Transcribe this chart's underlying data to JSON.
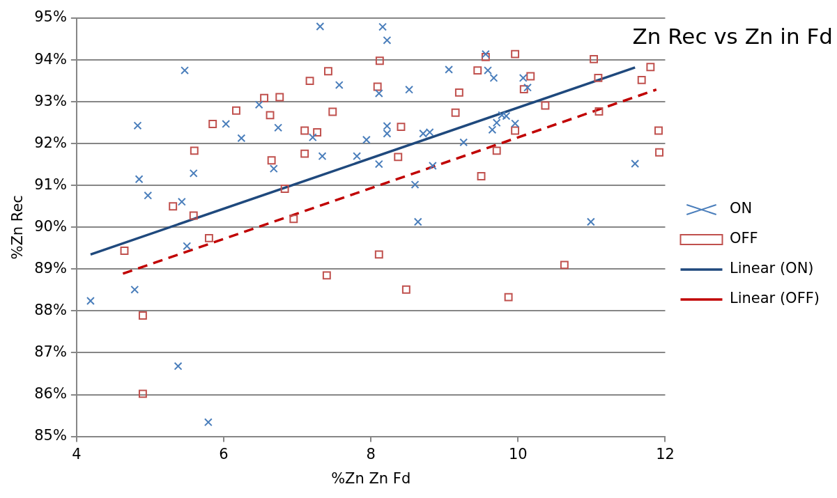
{
  "chart_data": {
    "type": "scatter",
    "title": "Zn Rec vs Zn in Fd",
    "xlabel": "%Zn Zn Fd",
    "ylabel": "%Zn Rec",
    "xlim": [
      4,
      12
    ],
    "xticks": [
      4,
      6,
      8,
      10,
      12
    ],
    "ylim": [
      85,
      95
    ],
    "yticks": [
      {
        "value": 85,
        "label": "85%"
      },
      {
        "value": 86,
        "label": "86%"
      },
      {
        "value": 87,
        "label": "87%"
      },
      {
        "value": 88,
        "label": "88%"
      },
      {
        "value": 89,
        "label": "89%"
      },
      {
        "value": 90,
        "label": "90%"
      },
      {
        "value": 91,
        "label": "91%"
      },
      {
        "value": 92,
        "label": "92%"
      },
      {
        "value": 93,
        "label": "93%"
      },
      {
        "value": 94,
        "label": "94%"
      },
      {
        "value": 95,
        "label": "95%"
      }
    ],
    "grid": "y",
    "legend": "right",
    "series": [
      {
        "name": "ON",
        "color": "#4a7ebb",
        "marker": "cross",
        "x": [
          4.19,
          4.83,
          4.85,
          4.97,
          4.79,
          5.47,
          5.43,
          5.5,
          5.59,
          5.38,
          5.79,
          6.03,
          6.24,
          6.48,
          6.74,
          6.68,
          7.21,
          7.31,
          7.34,
          7.57,
          7.81,
          7.94,
          8.11,
          8.11,
          8.16,
          8.22,
          8.22,
          8.22,
          8.52,
          8.6,
          8.64,
          8.71,
          8.8,
          8.84,
          9.26,
          9.06,
          9.56,
          9.59,
          9.67,
          9.65,
          9.71,
          9.78,
          9.84,
          9.96,
          10.07,
          10.13,
          10.99,
          11.59
        ],
        "values": [
          88.24,
          92.43,
          91.15,
          90.76,
          88.51,
          93.75,
          90.61,
          89.55,
          91.29,
          86.68,
          85.34,
          92.47,
          92.13,
          92.93,
          92.38,
          91.4,
          92.15,
          94.8,
          91.7,
          93.4,
          91.7,
          92.09,
          91.51,
          93.2,
          94.79,
          94.47,
          92.42,
          92.24,
          93.29,
          91.02,
          90.13,
          92.24,
          92.27,
          91.47,
          92.03,
          93.77,
          94.14,
          93.75,
          93.57,
          92.33,
          92.5,
          92.68,
          92.66,
          92.48,
          93.57,
          93.34,
          90.13,
          91.52
        ]
      },
      {
        "name": "OFF",
        "color": "#c0504d",
        "marker": "square",
        "x": [
          7.42,
          7.17,
          6.76,
          6.55,
          6.17,
          6.63,
          7.48,
          5.85,
          7.1,
          7.27,
          5.6,
          7.1,
          6.65,
          6.83,
          5.31,
          5.59,
          6.95,
          4.65,
          5.8,
          4.9,
          4.9,
          7.4,
          8.12,
          8.09,
          8.41,
          8.37,
          9.2,
          9.15,
          9.56,
          9.45,
          9.96,
          10.17,
          10.08,
          10.37,
          9.96,
          9.71,
          9.5,
          11.03,
          11.09,
          11.8,
          11.68,
          11.1,
          11.91,
          11.92,
          8.11,
          8.48,
          9.87,
          10.63
        ],
        "values": [
          93.73,
          93.5,
          93.11,
          93.09,
          92.79,
          92.68,
          92.76,
          92.47,
          92.31,
          92.27,
          91.83,
          91.76,
          91.6,
          90.92,
          90.5,
          90.28,
          90.2,
          89.44,
          89.74,
          87.89,
          86.02,
          88.85,
          93.98,
          93.36,
          92.4,
          91.68,
          93.22,
          92.74,
          94.07,
          93.75,
          94.14,
          93.61,
          93.3,
          92.91,
          92.31,
          91.83,
          91.22,
          94.02,
          93.57,
          93.83,
          93.52,
          92.77,
          92.31,
          91.79,
          89.35,
          88.51,
          88.33,
          89.1
        ]
      },
      {
        "name": "Linear (ON)",
        "type": "line",
        "color": "#1f497d",
        "line_style": "solid",
        "x": [
          4.19,
          11.59
        ],
        "values": [
          89.35,
          93.82
        ]
      },
      {
        "name": "Linear (OFF)",
        "type": "line",
        "color": "#c00000",
        "line_style": "dashed",
        "x": [
          4.63,
          11.88
        ],
        "values": [
          88.89,
          93.29
        ]
      }
    ]
  }
}
